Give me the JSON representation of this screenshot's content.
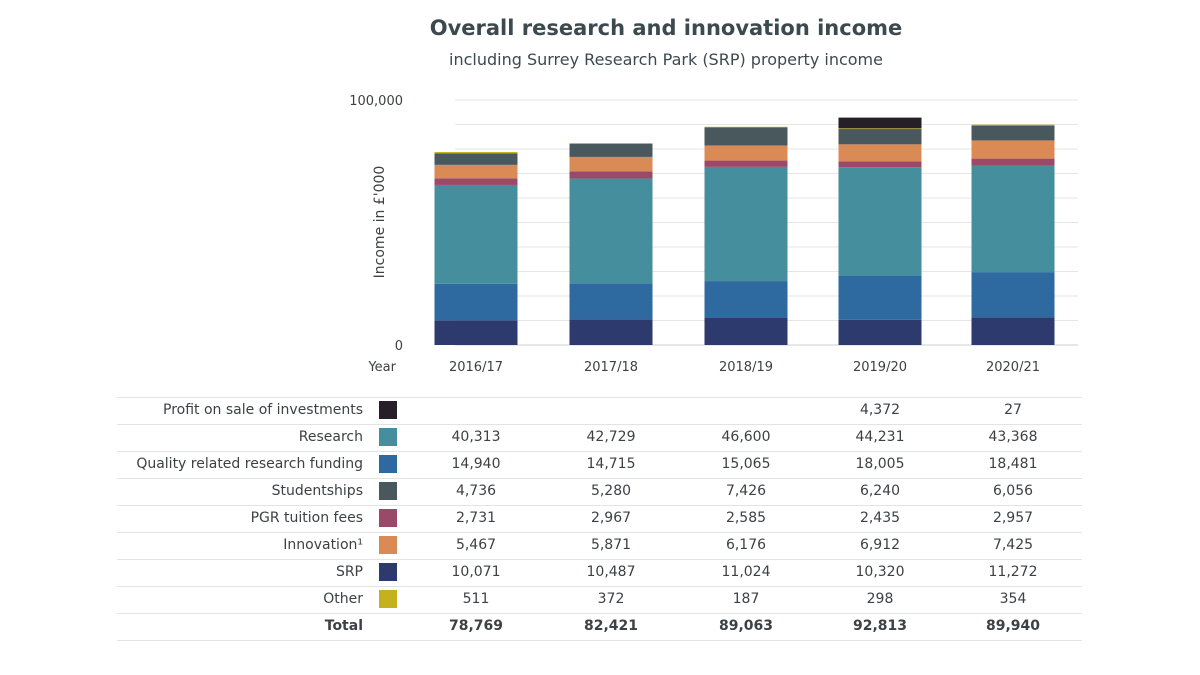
{
  "chart_data": {
    "type": "bar",
    "stacked": true,
    "title": "Overall research and innovation income",
    "subtitle": "including Surrey Research Park (SRP) property income",
    "ylabel": "Income in £'000",
    "xlabel": "Year",
    "ylim": [
      0,
      100000
    ],
    "yticks": [
      "0",
      "100,000"
    ],
    "grid": true,
    "categories": [
      "2016/17",
      "2017/18",
      "2018/19",
      "2019/20",
      "2020/21"
    ],
    "series": [
      {
        "name": "SRP",
        "color": "#2c3a6e",
        "values": [
          10071,
          10487,
          11024,
          10320,
          11272
        ],
        "labels": [
          "10,071",
          "10,487",
          "11,024",
          "10,320",
          "11,272"
        ]
      },
      {
        "name": "Quality related research funding",
        "color": "#2e6aa0",
        "values": [
          14940,
          14715,
          15065,
          18005,
          18481
        ],
        "labels": [
          "14,940",
          "14,715",
          "15,065",
          "18,005",
          "18,481"
        ]
      },
      {
        "name": "Research",
        "color": "#448e9e",
        "values": [
          40313,
          42729,
          46600,
          44231,
          43368
        ],
        "labels": [
          "40,313",
          "42,729",
          "46,600",
          "44,231",
          "43,368"
        ]
      },
      {
        "name": "PGR tuition fees",
        "color": "#9a4a68",
        "values": [
          2731,
          2967,
          2585,
          2435,
          2957
        ],
        "labels": [
          "2,731",
          "2,967",
          "2,585",
          "2,435",
          "2,957"
        ]
      },
      {
        "name": "Innovation¹",
        "color": "#d98a55",
        "values": [
          5467,
          5871,
          6176,
          6912,
          7425
        ],
        "labels": [
          "5,467",
          "5,871",
          "6,176",
          "6,912",
          "7,425"
        ]
      },
      {
        "name": "Studentships",
        "color": "#48585c",
        "values": [
          4736,
          5280,
          7426,
          6240,
          6056
        ],
        "labels": [
          "4,736",
          "5,280",
          "7,426",
          "6,240",
          "6,056"
        ]
      },
      {
        "name": "Other",
        "color": "#c4b11c",
        "values": [
          511,
          372,
          187,
          298,
          354
        ],
        "labels": [
          "511",
          "372",
          "187",
          "298",
          "354"
        ]
      },
      {
        "name": "Profit on sale of investments",
        "color": "#261f28",
        "values": [
          0,
          0,
          0,
          4372,
          27
        ],
        "labels": [
          "",
          "",
          "",
          "4,372",
          "27"
        ]
      }
    ],
    "table_order": [
      "Profit on sale of investments",
      "Research",
      "Quality related research funding",
      "Studentships",
      "PGR tuition fees",
      "Innovation¹",
      "SRP",
      "Other"
    ],
    "total": {
      "name": "Total",
      "labels": [
        "78,769",
        "82,421",
        "89,063",
        "92,813",
        "89,940"
      ]
    }
  }
}
